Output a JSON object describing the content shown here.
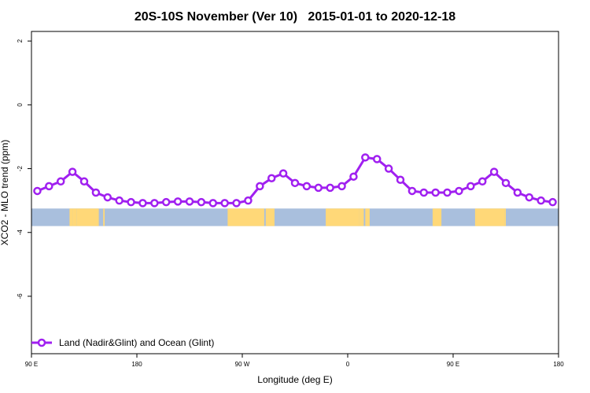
{
  "chart_data": {
    "type": "line",
    "title": "20S-10S November (Ver 10)   2015-01-01 to 2020-12-18",
    "xlabel": "Longitude (deg E)",
    "ylabel": "XCO2 - MLO trend (ppm)",
    "xlim": [
      90,
      450
    ],
    "ylim": [
      -7.8,
      2.3
    ],
    "x_ticks": [
      90,
      162,
      234,
      306,
      378,
      450
    ],
    "x_tick_labels": [
      "90 E",
      "180",
      "90 W",
      "0",
      "90 E",
      "180"
    ],
    "y_ticks": [
      2,
      0,
      -2,
      -4,
      -6
    ],
    "y_tick_labels": [
      "2",
      "0",
      "-2",
      "-4",
      "-6"
    ],
    "legend_position": "bottom-left",
    "line_color": "#a020f0",
    "land_color": "#ffd878",
    "ocean_color": "#a9bfdd",
    "land_ocean_band": {
      "y_top": -3.25,
      "y_bottom": -3.8,
      "land_segments": [
        [
          116,
          118
        ],
        [
          118,
          121
        ],
        [
          121,
          136
        ],
        [
          139,
          140
        ],
        [
          224,
          249
        ],
        [
          250,
          256
        ],
        [
          291,
          314
        ],
        [
          314,
          317
        ],
        [
          318,
          321
        ],
        [
          364,
          370
        ],
        [
          393,
          413
        ],
        [
          413,
          414
        ]
      ]
    },
    "series": [
      {
        "name": "Land (Nadir&Glint) and Ocean (Glint)",
        "x": [
          94,
          102,
          110,
          118,
          126,
          134,
          142,
          150,
          158,
          166,
          174,
          182,
          190,
          198,
          206,
          214,
          222,
          230,
          238,
          246,
          254,
          262,
          270,
          278,
          286,
          294,
          302,
          310,
          318,
          326,
          334,
          342,
          350,
          358,
          366,
          374,
          382,
          390,
          398,
          406,
          414,
          422,
          430,
          438,
          446
        ],
        "values": [
          -2.7,
          -2.55,
          -2.4,
          -2.1,
          -2.4,
          -2.75,
          -2.9,
          -3.0,
          -3.05,
          -3.08,
          -3.08,
          -3.05,
          -3.03,
          -3.03,
          -3.05,
          -3.08,
          -3.08,
          -3.08,
          -3.0,
          -2.55,
          -2.3,
          -2.15,
          -2.45,
          -2.55,
          -2.6,
          -2.6,
          -2.55,
          -2.25,
          -1.65,
          -1.7,
          -2.0,
          -2.35,
          -2.7,
          -2.75,
          -2.75,
          -2.75,
          -2.7,
          -2.55,
          -2.4,
          -2.1,
          -2.45,
          -2.75,
          -2.9,
          -3.0,
          -3.05
        ]
      }
    ]
  }
}
